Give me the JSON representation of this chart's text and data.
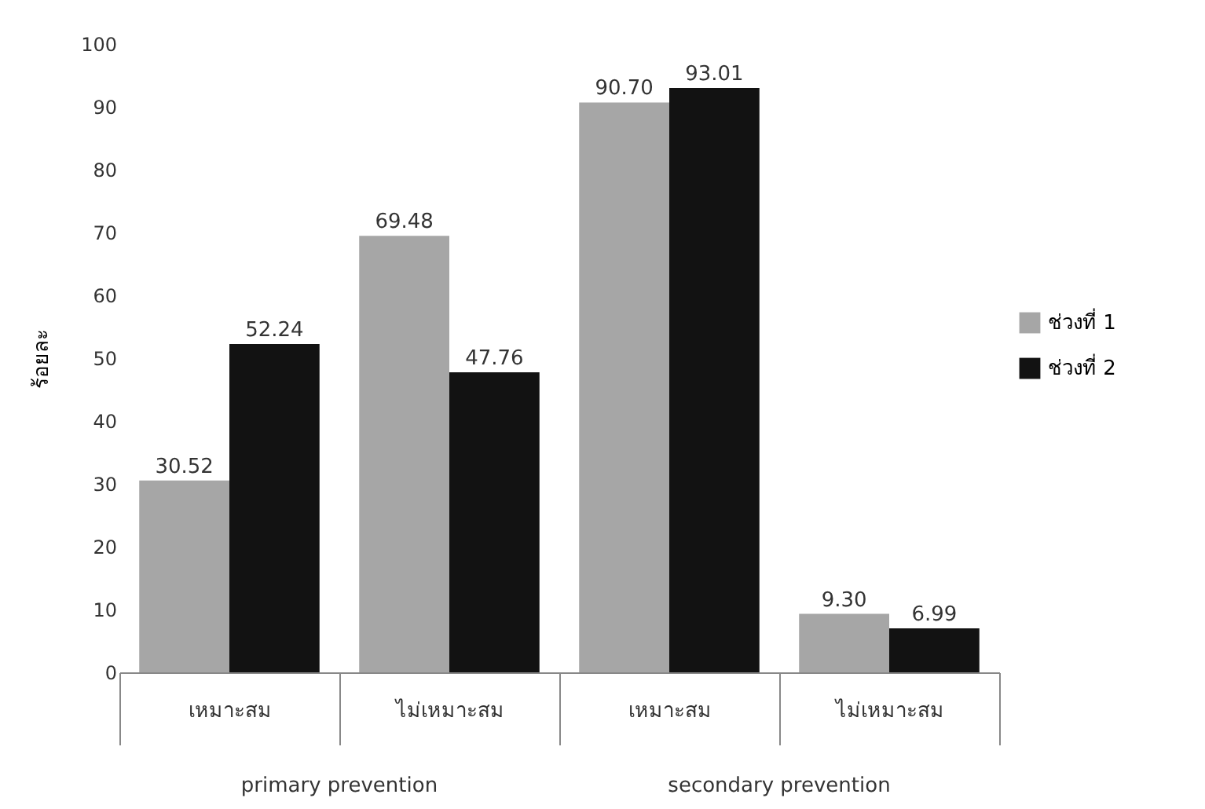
{
  "chart_data": {
    "type": "bar",
    "ylabel": "ร้อยละ",
    "categories": [
      "เหมาะสม",
      "ไม่เหมาะสม",
      "เหมาะสม",
      "ไม่เหมาะสม"
    ],
    "series": [
      {
        "name": "ช่วงที่ 1",
        "color": "#a6a6a6",
        "values": [
          30.52,
          69.48,
          90.7,
          9.3
        ],
        "value_labels": [
          "30.52",
          "69.48",
          "90.70",
          "9.30"
        ]
      },
      {
        "name": "ช่วงที่ 2",
        "color": "#121212",
        "values": [
          52.24,
          47.76,
          93.01,
          6.99
        ],
        "value_labels": [
          "52.24",
          "47.76",
          "93.01",
          "6.99"
        ]
      }
    ],
    "annotations": [
      "primary prevention",
      "secondary prevention"
    ],
    "ylim": [
      0,
      100
    ],
    "yticks": [
      0,
      10,
      20,
      30,
      40,
      50,
      60,
      70,
      80,
      90,
      100
    ],
    "grid": false,
    "legend": "right"
  }
}
